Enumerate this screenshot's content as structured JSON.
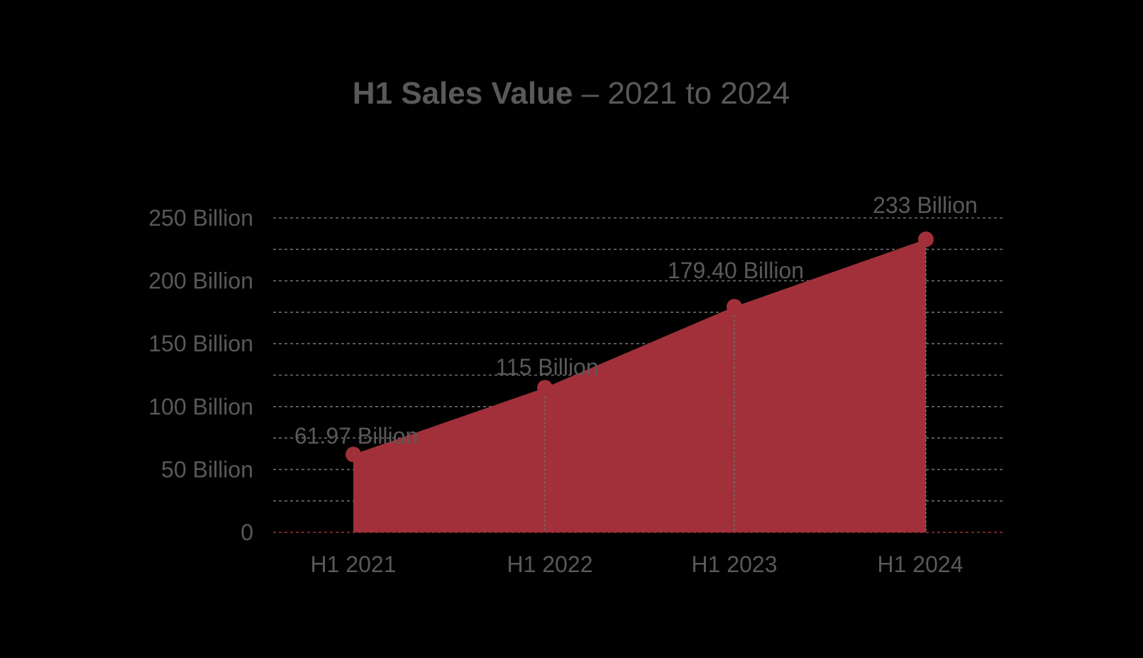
{
  "chart_data": {
    "type": "area",
    "title": "H1 Sales Value",
    "subtitle": "– 2021 to 2024",
    "categories": [
      "H1 2021",
      "H1 2022",
      "H1 2023",
      "H1 2024"
    ],
    "values": [
      61.97,
      115,
      179.4,
      233
    ],
    "data_labels": [
      "61.97 Billion",
      "115 Billion",
      "179.40 Billion",
      "233 Billion"
    ],
    "y_ticks": [
      {
        "value": 0,
        "label": "0"
      },
      {
        "value": 50,
        "label": "50 Billion"
      },
      {
        "value": 100,
        "label": "100 Billion"
      },
      {
        "value": 150,
        "label": "150 Billion"
      },
      {
        "value": 200,
        "label": "200 Billion"
      },
      {
        "value": 250,
        "label": "250 Billion"
      }
    ],
    "ylim": [
      0,
      250
    ],
    "minor_grid_step": 25,
    "xlabel": "",
    "ylabel": "",
    "grid": true,
    "legend": "none",
    "colors": {
      "area": "#A1303A",
      "marker": "#A1303A",
      "text": "#595959",
      "grid": "#6E6E6E",
      "baseline": "#A1303A",
      "background": "#000000"
    }
  }
}
